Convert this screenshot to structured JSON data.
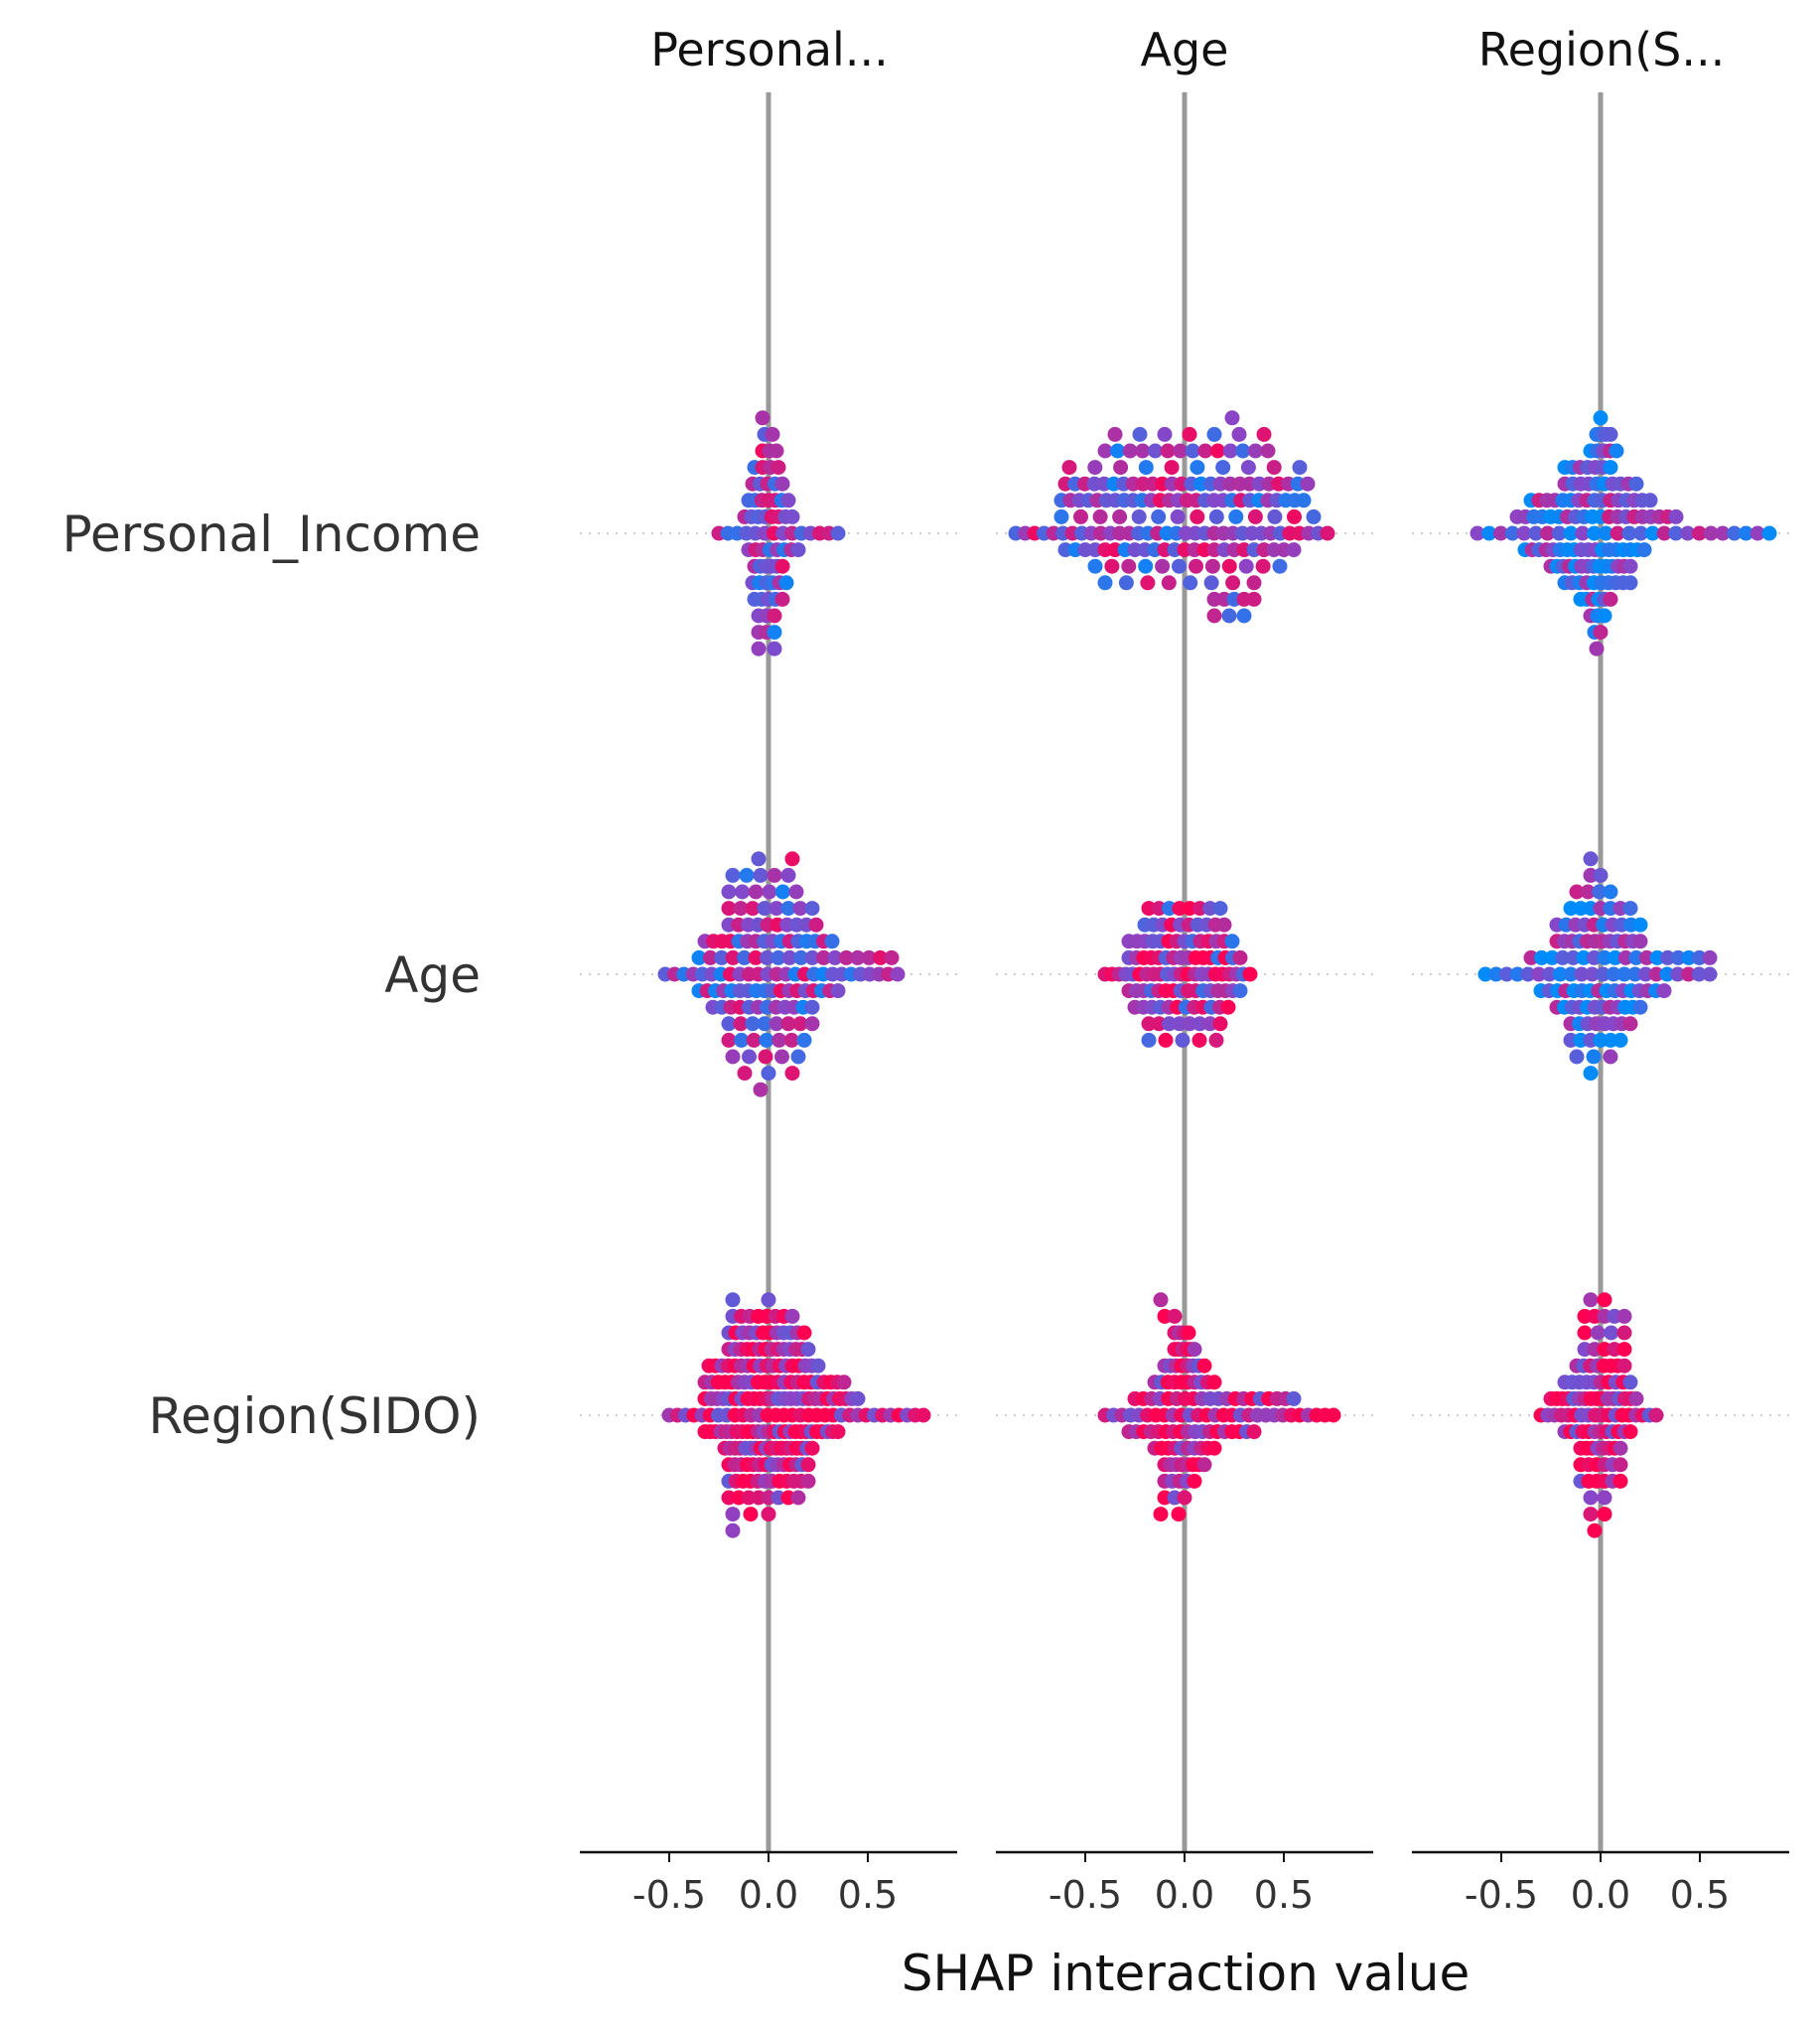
{
  "chart_data": {
    "type": "scatter",
    "subtype": "shap-interaction-beeswarm-grid",
    "xlabel": "SHAP interaction value",
    "column_titles": [
      "Personal...",
      "Age",
      "Region(S..."
    ],
    "row_labels": [
      "Personal_Income",
      "Age",
      "Region(SIDO)"
    ],
    "xlim": [
      -0.95,
      0.95
    ],
    "xticks": [
      -0.5,
      0.0,
      0.5
    ],
    "xtick_labels": [
      "-0.5",
      "0.0",
      "0.5"
    ],
    "color_low": "#008bfb",
    "color_high": "#ff0052",
    "zero_line_color": "#999999",
    "cells": [
      {
        "row": "Personal_Income",
        "col": "Personal...",
        "x_range": [
          -0.25,
          0.35
        ],
        "rows": [
          {
            "level": 7,
            "n": 1,
            "x_min": -0.03,
            "x_max": -0.03
          },
          {
            "level": 6,
            "n": 2,
            "x_min": -0.02,
            "x_max": 0.02
          },
          {
            "level": 5,
            "n": 3,
            "x_min": -0.03,
            "x_max": 0.04
          },
          {
            "level": 4,
            "n": 4,
            "x_min": -0.07,
            "x_max": 0.05
          },
          {
            "level": 3,
            "n": 5,
            "x_min": -0.08,
            "x_max": 0.07
          },
          {
            "level": 2,
            "n": 7,
            "x_min": -0.1,
            "x_max": 0.1
          },
          {
            "level": 1,
            "n": 8,
            "x_min": -0.12,
            "x_max": 0.12
          },
          {
            "level": 0,
            "n": 14,
            "x_min": -0.25,
            "x_max": 0.35
          },
          {
            "level": -1,
            "n": 8,
            "x_min": -0.1,
            "x_max": 0.15
          },
          {
            "level": -2,
            "n": 6,
            "x_min": -0.07,
            "x_max": 0.07
          },
          {
            "level": -3,
            "n": 6,
            "x_min": -0.08,
            "x_max": 0.09
          },
          {
            "level": -4,
            "n": 5,
            "x_min": -0.07,
            "x_max": 0.07
          },
          {
            "level": -5,
            "n": 3,
            "x_min": -0.05,
            "x_max": 0.03
          },
          {
            "level": -6,
            "n": 3,
            "x_min": -0.05,
            "x_max": 0.03
          },
          {
            "level": -7,
            "n": 2,
            "x_min": -0.05,
            "x_max": 0.03
          }
        ]
      },
      {
        "row": "Personal_Income",
        "col": "Age",
        "x_range": [
          -0.85,
          0.72
        ],
        "rows": [
          {
            "level": 7,
            "n": 1,
            "x_min": 0.24,
            "x_max": 0.24
          },
          {
            "level": 6,
            "n": 7,
            "x_min": -0.35,
            "x_max": 0.4
          },
          {
            "level": 5,
            "n": 14,
            "x_min": -0.4,
            "x_max": 0.42
          },
          {
            "level": 4,
            "n": 10,
            "x_min": -0.58,
            "x_max": 0.58
          },
          {
            "level": 3,
            "n": 26,
            "x_min": -0.6,
            "x_max": 0.62
          },
          {
            "level": 2,
            "n": 28,
            "x_min": -0.62,
            "x_max": 0.6
          },
          {
            "level": 1,
            "n": 14,
            "x_min": -0.62,
            "x_max": 0.65
          },
          {
            "level": 0,
            "n": 34,
            "x_min": -0.85,
            "x_max": 0.72
          },
          {
            "level": -1,
            "n": 24,
            "x_min": -0.6,
            "x_max": 0.55
          },
          {
            "level": -2,
            "n": 12,
            "x_min": -0.45,
            "x_max": 0.48
          },
          {
            "level": -3,
            "n": 8,
            "x_min": -0.4,
            "x_max": 0.35
          },
          {
            "level": -4,
            "n": 5,
            "x_min": 0.15,
            "x_max": 0.35
          },
          {
            "level": -5,
            "n": 3,
            "x_min": 0.15,
            "x_max": 0.3
          }
        ]
      },
      {
        "row": "Personal_Income",
        "col": "Region(S...",
        "x_range": [
          -0.62,
          0.85
        ],
        "rows": [
          {
            "level": 7,
            "n": 1,
            "x_min": 0.0,
            "x_max": 0.0
          },
          {
            "level": 6,
            "n": 4,
            "x_min": -0.02,
            "x_max": 0.05
          },
          {
            "level": 5,
            "n": 5,
            "x_min": -0.05,
            "x_max": 0.08
          },
          {
            "level": 4,
            "n": 7,
            "x_min": -0.18,
            "x_max": 0.05
          },
          {
            "level": 3,
            "n": 10,
            "x_min": -0.18,
            "x_max": 0.18
          },
          {
            "level": 2,
            "n": 16,
            "x_min": -0.35,
            "x_max": 0.25
          },
          {
            "level": 1,
            "n": 20,
            "x_min": -0.42,
            "x_max": 0.38
          },
          {
            "level": 0,
            "n": 26,
            "x_min": -0.62,
            "x_max": 0.85
          },
          {
            "level": -1,
            "n": 18,
            "x_min": -0.38,
            "x_max": 0.22
          },
          {
            "level": -2,
            "n": 14,
            "x_min": -0.25,
            "x_max": 0.15
          },
          {
            "level": -3,
            "n": 10,
            "x_min": -0.18,
            "x_max": 0.15
          },
          {
            "level": -4,
            "n": 6,
            "x_min": -0.1,
            "x_max": 0.05
          },
          {
            "level": -5,
            "n": 3,
            "x_min": -0.05,
            "x_max": 0.02
          },
          {
            "level": -6,
            "n": 2,
            "x_min": -0.03,
            "x_max": 0.0
          },
          {
            "level": -7,
            "n": 1,
            "x_min": -0.02,
            "x_max": -0.02
          }
        ]
      },
      {
        "row": "Age",
        "col": "Personal...",
        "x_range": [
          -0.52,
          0.65
        ],
        "rows": [
          {
            "level": 7,
            "n": 2,
            "x_min": -0.05,
            "x_max": 0.12
          },
          {
            "level": 6,
            "n": 5,
            "x_min": -0.18,
            "x_max": 0.1
          },
          {
            "level": 5,
            "n": 6,
            "x_min": -0.2,
            "x_max": 0.14
          },
          {
            "level": 4,
            "n": 8,
            "x_min": -0.2,
            "x_max": 0.22
          },
          {
            "level": 3,
            "n": 10,
            "x_min": -0.2,
            "x_max": 0.24
          },
          {
            "level": 2,
            "n": 16,
            "x_min": -0.32,
            "x_max": 0.32
          },
          {
            "level": 1,
            "n": 18,
            "x_min": -0.35,
            "x_max": 0.62
          },
          {
            "level": 0,
            "n": 26,
            "x_min": -0.52,
            "x_max": 0.65
          },
          {
            "level": -1,
            "n": 18,
            "x_min": -0.35,
            "x_max": 0.35
          },
          {
            "level": -2,
            "n": 12,
            "x_min": -0.28,
            "x_max": 0.22
          },
          {
            "level": -3,
            "n": 8,
            "x_min": -0.2,
            "x_max": 0.22
          },
          {
            "level": -4,
            "n": 7,
            "x_min": -0.2,
            "x_max": 0.18
          },
          {
            "level": -5,
            "n": 5,
            "x_min": -0.18,
            "x_max": 0.15
          },
          {
            "level": -6,
            "n": 3,
            "x_min": -0.12,
            "x_max": 0.12
          },
          {
            "level": -7,
            "n": 1,
            "x_min": -0.04,
            "x_max": -0.04
          }
        ]
      },
      {
        "row": "Age",
        "col": "Age",
        "x_range": [
          -0.4,
          0.33
        ],
        "rows": [
          {
            "level": 4,
            "n": 8,
            "x_min": -0.18,
            "x_max": 0.18
          },
          {
            "level": 3,
            "n": 10,
            "x_min": -0.2,
            "x_max": 0.2
          },
          {
            "level": 2,
            "n": 14,
            "x_min": -0.28,
            "x_max": 0.24
          },
          {
            "level": 1,
            "n": 16,
            "x_min": -0.28,
            "x_max": 0.28
          },
          {
            "level": 0,
            "n": 22,
            "x_min": -0.4,
            "x_max": 0.33
          },
          {
            "level": -1,
            "n": 16,
            "x_min": -0.28,
            "x_max": 0.28
          },
          {
            "level": -2,
            "n": 12,
            "x_min": -0.25,
            "x_max": 0.22
          },
          {
            "level": -3,
            "n": 8,
            "x_min": -0.18,
            "x_max": 0.18
          },
          {
            "level": -4,
            "n": 5,
            "x_min": -0.18,
            "x_max": 0.16
          }
        ]
      },
      {
        "row": "Age",
        "col": "Region(S...",
        "x_range": [
          -0.58,
          0.55
        ],
        "rows": [
          {
            "level": 7,
            "n": 1,
            "x_min": -0.05,
            "x_max": -0.05
          },
          {
            "level": 6,
            "n": 2,
            "x_min": -0.05,
            "x_max": 0.0
          },
          {
            "level": 5,
            "n": 4,
            "x_min": -0.12,
            "x_max": 0.05
          },
          {
            "level": 4,
            "n": 7,
            "x_min": -0.15,
            "x_max": 0.15
          },
          {
            "level": 3,
            "n": 10,
            "x_min": -0.22,
            "x_max": 0.2
          },
          {
            "level": 2,
            "n": 12,
            "x_min": -0.22,
            "x_max": 0.2
          },
          {
            "level": 1,
            "n": 18,
            "x_min": -0.35,
            "x_max": 0.55
          },
          {
            "level": 0,
            "n": 22,
            "x_min": -0.58,
            "x_max": 0.55
          },
          {
            "level": -1,
            "n": 16,
            "x_min": -0.3,
            "x_max": 0.32
          },
          {
            "level": -2,
            "n": 12,
            "x_min": -0.22,
            "x_max": 0.2
          },
          {
            "level": -3,
            "n": 8,
            "x_min": -0.15,
            "x_max": 0.15
          },
          {
            "level": -4,
            "n": 6,
            "x_min": -0.15,
            "x_max": 0.1
          },
          {
            "level": -5,
            "n": 3,
            "x_min": -0.12,
            "x_max": 0.05
          },
          {
            "level": -6,
            "n": 1,
            "x_min": -0.05,
            "x_max": -0.05
          }
        ]
      },
      {
        "row": "Region(SIDO)",
        "col": "Personal...",
        "x_range": [
          -0.5,
          0.78
        ],
        "rows": [
          {
            "level": 7,
            "n": 2,
            "x_min": -0.18,
            "x_max": 0.0
          },
          {
            "level": 6,
            "n": 8,
            "x_min": -0.18,
            "x_max": 0.12
          },
          {
            "level": 5,
            "n": 12,
            "x_min": -0.2,
            "x_max": 0.18
          },
          {
            "level": 4,
            "n": 14,
            "x_min": -0.2,
            "x_max": 0.2
          },
          {
            "level": 3,
            "n": 18,
            "x_min": -0.3,
            "x_max": 0.25
          },
          {
            "level": 2,
            "n": 22,
            "x_min": -0.32,
            "x_max": 0.38
          },
          {
            "level": 1,
            "n": 26,
            "x_min": -0.32,
            "x_max": 0.45
          },
          {
            "level": 0,
            "n": 32,
            "x_min": -0.5,
            "x_max": 0.78
          },
          {
            "level": -1,
            "n": 26,
            "x_min": -0.32,
            "x_max": 0.35
          },
          {
            "level": -2,
            "n": 18,
            "x_min": -0.22,
            "x_max": 0.22
          },
          {
            "level": -3,
            "n": 14,
            "x_min": -0.2,
            "x_max": 0.2
          },
          {
            "level": -4,
            "n": 12,
            "x_min": -0.2,
            "x_max": 0.2
          },
          {
            "level": -5,
            "n": 8,
            "x_min": -0.2,
            "x_max": 0.15
          },
          {
            "level": -6,
            "n": 3,
            "x_min": -0.18,
            "x_max": 0.0
          },
          {
            "level": -7,
            "n": 1,
            "x_min": -0.18,
            "x_max": -0.18
          }
        ]
      },
      {
        "row": "Region(SIDO)",
        "col": "Age",
        "x_range": [
          -0.4,
          0.75
        ],
        "rows": [
          {
            "level": 7,
            "n": 1,
            "x_min": -0.12,
            "x_max": -0.12
          },
          {
            "level": 6,
            "n": 2,
            "x_min": -0.1,
            "x_max": -0.05
          },
          {
            "level": 5,
            "n": 4,
            "x_min": -0.05,
            "x_max": 0.02
          },
          {
            "level": 4,
            "n": 6,
            "x_min": -0.05,
            "x_max": 0.05
          },
          {
            "level": 3,
            "n": 8,
            "x_min": -0.1,
            "x_max": 0.1
          },
          {
            "level": 2,
            "n": 10,
            "x_min": -0.15,
            "x_max": 0.15
          },
          {
            "level": 1,
            "n": 20,
            "x_min": -0.25,
            "x_max": 0.55
          },
          {
            "level": 0,
            "n": 28,
            "x_min": -0.4,
            "x_max": 0.75
          },
          {
            "level": -1,
            "n": 18,
            "x_min": -0.28,
            "x_max": 0.35
          },
          {
            "level": -2,
            "n": 10,
            "x_min": -0.15,
            "x_max": 0.15
          },
          {
            "level": -3,
            "n": 8,
            "x_min": -0.1,
            "x_max": 0.1
          },
          {
            "level": -4,
            "n": 5,
            "x_min": -0.1,
            "x_max": 0.05
          },
          {
            "level": -5,
            "n": 3,
            "x_min": -0.1,
            "x_max": 0.0
          },
          {
            "level": -6,
            "n": 2,
            "x_min": -0.12,
            "x_max": -0.03
          }
        ]
      },
      {
        "row": "Region(SIDO)",
        "col": "Region(S...",
        "x_range": [
          -0.3,
          0.28
        ],
        "rows": [
          {
            "level": 7,
            "n": 2,
            "x_min": -0.05,
            "x_max": 0.02
          },
          {
            "level": 6,
            "n": 5,
            "x_min": -0.08,
            "x_max": 0.12
          },
          {
            "level": 5,
            "n": 4,
            "x_min": -0.08,
            "x_max": 0.12
          },
          {
            "level": 4,
            "n": 5,
            "x_min": -0.08,
            "x_max": 0.12
          },
          {
            "level": 3,
            "n": 8,
            "x_min": -0.12,
            "x_max": 0.12
          },
          {
            "level": 2,
            "n": 10,
            "x_min": -0.18,
            "x_max": 0.15
          },
          {
            "level": 1,
            "n": 16,
            "x_min": -0.25,
            "x_max": 0.18
          },
          {
            "level": 0,
            "n": 18,
            "x_min": -0.3,
            "x_max": 0.28
          },
          {
            "level": -1,
            "n": 12,
            "x_min": -0.18,
            "x_max": 0.15
          },
          {
            "level": -2,
            "n": 8,
            "x_min": -0.1,
            "x_max": 0.1
          },
          {
            "level": -3,
            "n": 6,
            "x_min": -0.1,
            "x_max": 0.1
          },
          {
            "level": -4,
            "n": 6,
            "x_min": -0.1,
            "x_max": 0.1
          },
          {
            "level": -5,
            "n": 2,
            "x_min": -0.05,
            "x_max": 0.02
          },
          {
            "level": -6,
            "n": 2,
            "x_min": -0.05,
            "x_max": 0.02
          },
          {
            "level": -7,
            "n": 1,
            "x_min": -0.03,
            "x_max": -0.03
          }
        ]
      }
    ]
  }
}
